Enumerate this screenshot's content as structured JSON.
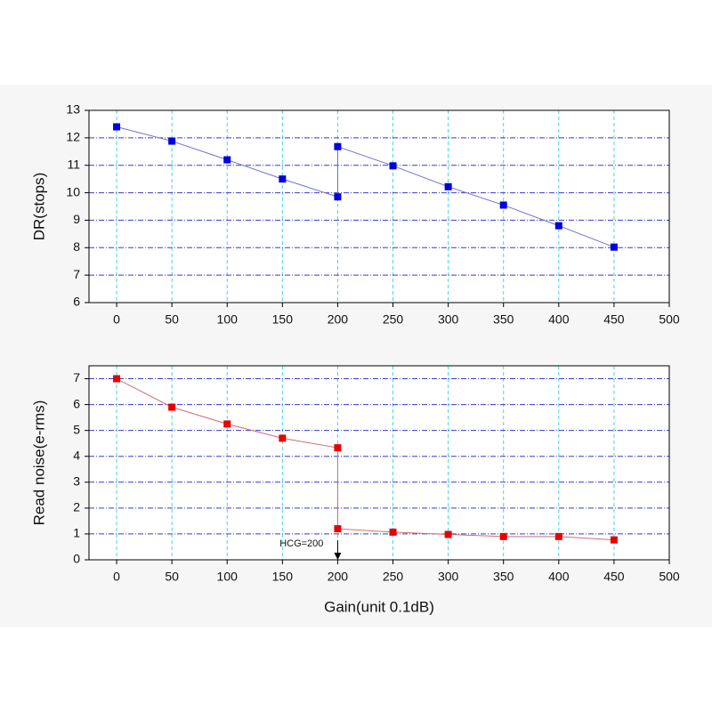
{
  "chart_data": [
    {
      "type": "line",
      "y_label": "DR(stops)",
      "x": [
        0,
        50,
        100,
        150,
        200,
        200,
        250,
        300,
        350,
        400,
        450
      ],
      "series": [
        {
          "name": "DR",
          "color": "#0000e0",
          "line_color": "#6f6fd0",
          "values": [
            12.4,
            11.88,
            11.2,
            10.5,
            9.85,
            11.68,
            10.98,
            10.22,
            9.55,
            8.8,
            8.02
          ]
        }
      ],
      "xlim": [
        -25,
        500
      ],
      "xticks": [
        0,
        50,
        100,
        150,
        200,
        250,
        300,
        350,
        400,
        450,
        500
      ],
      "ylim": [
        6,
        13
      ],
      "yticks": [
        6,
        7,
        8,
        9,
        10,
        11,
        12,
        13
      ],
      "grid": true
    },
    {
      "type": "line",
      "y_label": "Read noise(e-rms)",
      "x_label": "Gain(unit 0.1dB)",
      "x": [
        0,
        50,
        100,
        150,
        200,
        200,
        250,
        300,
        350,
        400,
        450
      ],
      "series": [
        {
          "name": "Read noise",
          "color": "#e80000",
          "line_color": "#d06f6f",
          "values": [
            7.0,
            5.9,
            5.25,
            4.7,
            4.33,
            1.2,
            1.07,
            0.98,
            0.9,
            0.9,
            0.77
          ]
        }
      ],
      "xlim": [
        -25,
        500
      ],
      "xticks": [
        0,
        50,
        100,
        150,
        200,
        250,
        300,
        350,
        400,
        450,
        500
      ],
      "ylim": [
        0,
        7.5
      ],
      "yticks": [
        0,
        1,
        2,
        3,
        4,
        5,
        6,
        7
      ],
      "grid": true,
      "annotation": {
        "text": "HCG=200",
        "x": 200
      }
    }
  ]
}
